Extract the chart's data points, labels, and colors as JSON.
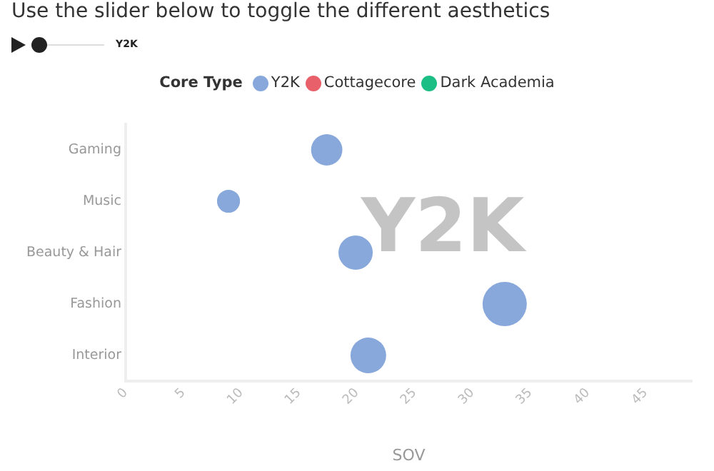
{
  "chart_data": {
    "type": "bubble",
    "title": "Use the slider below to toggle the different aesthetics",
    "xlabel": "SOV",
    "legend_title": "Core Type",
    "legend": "top",
    "orientation": "horizontal",
    "grid": false,
    "categories": [
      "Gaming",
      "Music",
      "Beauty & Hair",
      "Fashion",
      "Interior"
    ],
    "series": [
      {
        "name": "Y2K",
        "color": "#88a8dc",
        "values": [
          17.4,
          8.9,
          19.9,
          32.8,
          21.0
        ],
        "sizes": [
          0.5,
          0.27,
          0.6,
          1,
          0.65
        ]
      },
      {
        "name": "Cottagecore",
        "color": "#e8606a",
        "values": [
          null,
          null,
          null,
          null,
          null
        ],
        "sizes": [
          null,
          null,
          null,
          null,
          null
        ]
      },
      {
        "name": "Dark Academia",
        "color": "#1bbf85",
        "values": [
          null,
          null,
          null,
          null,
          null
        ],
        "sizes": [
          null,
          null,
          null,
          null,
          null
        ]
      }
    ],
    "xlim": [
      0,
      49
    ],
    "xticks": [
      0,
      5,
      10,
      15,
      20,
      25,
      30,
      35,
      40,
      45
    ],
    "annotations": [
      "Y2K",
      "Y2K"
    ]
  }
}
